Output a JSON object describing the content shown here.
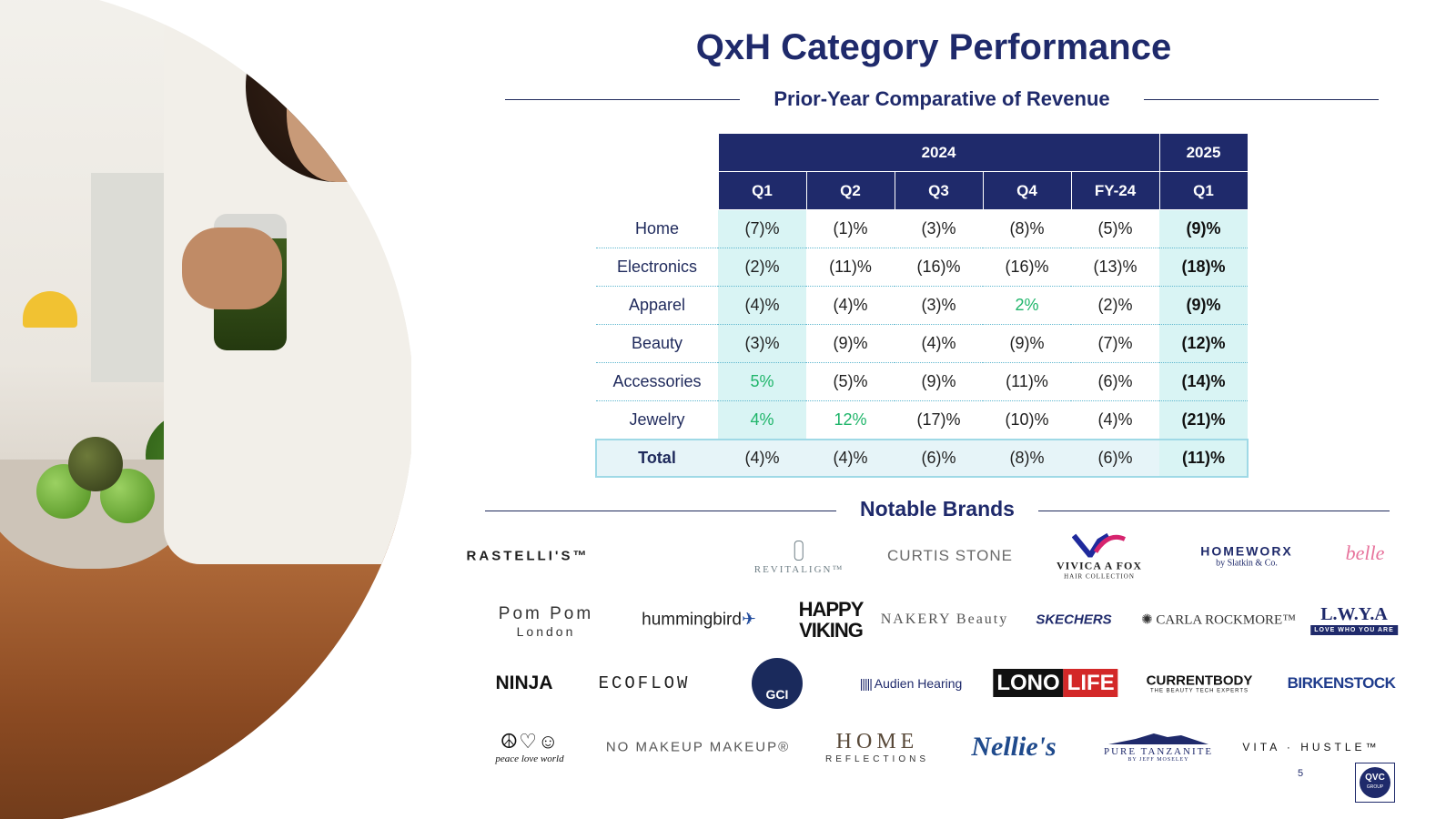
{
  "header": {
    "title": "QxH Category Performance",
    "subtitle": "Prior-Year Comparative of Revenue"
  },
  "table": {
    "year_headers": [
      "2024",
      "2025"
    ],
    "period_headers": [
      "Q1",
      "Q2",
      "Q3",
      "Q4",
      "FY-24",
      "Q1"
    ],
    "rows": [
      {
        "category": "Home",
        "values": [
          "(7)%",
          "(1)%",
          "(3)%",
          "(8)%",
          "(5)%",
          "(9)%"
        ]
      },
      {
        "category": "Electronics",
        "values": [
          "(2)%",
          "(11)%",
          "(16)%",
          "(16)%",
          "(13)%",
          "(18)%"
        ]
      },
      {
        "category": "Apparel",
        "values": [
          "(4)%",
          "(4)%",
          "(3)%",
          "2%",
          "(2)%",
          "(9)%"
        ]
      },
      {
        "category": "Beauty",
        "values": [
          "(3)%",
          "(9)%",
          "(4)%",
          "(9)%",
          "(7)%",
          "(12)%"
        ]
      },
      {
        "category": "Accessories",
        "values": [
          "5%",
          "(5)%",
          "(9)%",
          "(11)%",
          "(6)%",
          "(14)%"
        ]
      },
      {
        "category": "Jewelry",
        "values": [
          "4%",
          "12%",
          "(17)%",
          "(10)%",
          "(4)%",
          "(21)%"
        ]
      }
    ],
    "total": {
      "category": "Total",
      "values": [
        "(4)%",
        "(4)%",
        "(6)%",
        "(8)%",
        "(6)%",
        "(11)%"
      ]
    },
    "colors": {
      "header": "#1f2a6b",
      "highlight": "#d9f4f4",
      "positive": "#1fb56a"
    }
  },
  "brands": {
    "heading": "Notable Brands",
    "rastelli": "RASTELLI'S™",
    "revitalign": "REVITALIGN™",
    "curtis": "CURTIS STONE",
    "vivica": "VIVICA A FOX",
    "vivica_sub": "HAIR COLLECTION",
    "homeworx": "HOMEWORX",
    "homeworx_sub": "by Slatkin & Co.",
    "belle": "belle",
    "pompom": "Pom Pom",
    "pompom_sub": "London",
    "hummingbird": "hummingbird",
    "happy_1": "HAPPY",
    "happy_2": "VIKING",
    "nakery": "NAKERY Beauty",
    "skechers": "SKECHERS",
    "carla": "CARLA ROCKMORE™",
    "lwya": "L.W.Y.A",
    "lwya_sub": "LOVE WHO YOU ARE",
    "ninja": "NINJA",
    "ecoflow": "ECOFLOW",
    "gci": "GCI",
    "audien": "Audien Hearing",
    "lono_1": "LONO",
    "lono_2": "LIFE",
    "currentbody": "CURRENTBODY",
    "currentbody_sub": "THE BEAUTY TECH EXPERTS",
    "birkenstock": "BIRKENSTOCK",
    "peace": "peace love world",
    "nomakeup": "NO MAKEUP MAKEUP®",
    "homeref": "HOME",
    "homeref_sub": "REFLECTIONS",
    "nellie": "Nellie's",
    "pure": "PURE TANZANITE",
    "pure_sub": "BY JEFF MOSELEY",
    "vita": "VITA · HUSTLE™"
  },
  "footer": {
    "page_number": "5",
    "logo": "QVC",
    "logo_sub": "GROUP"
  }
}
